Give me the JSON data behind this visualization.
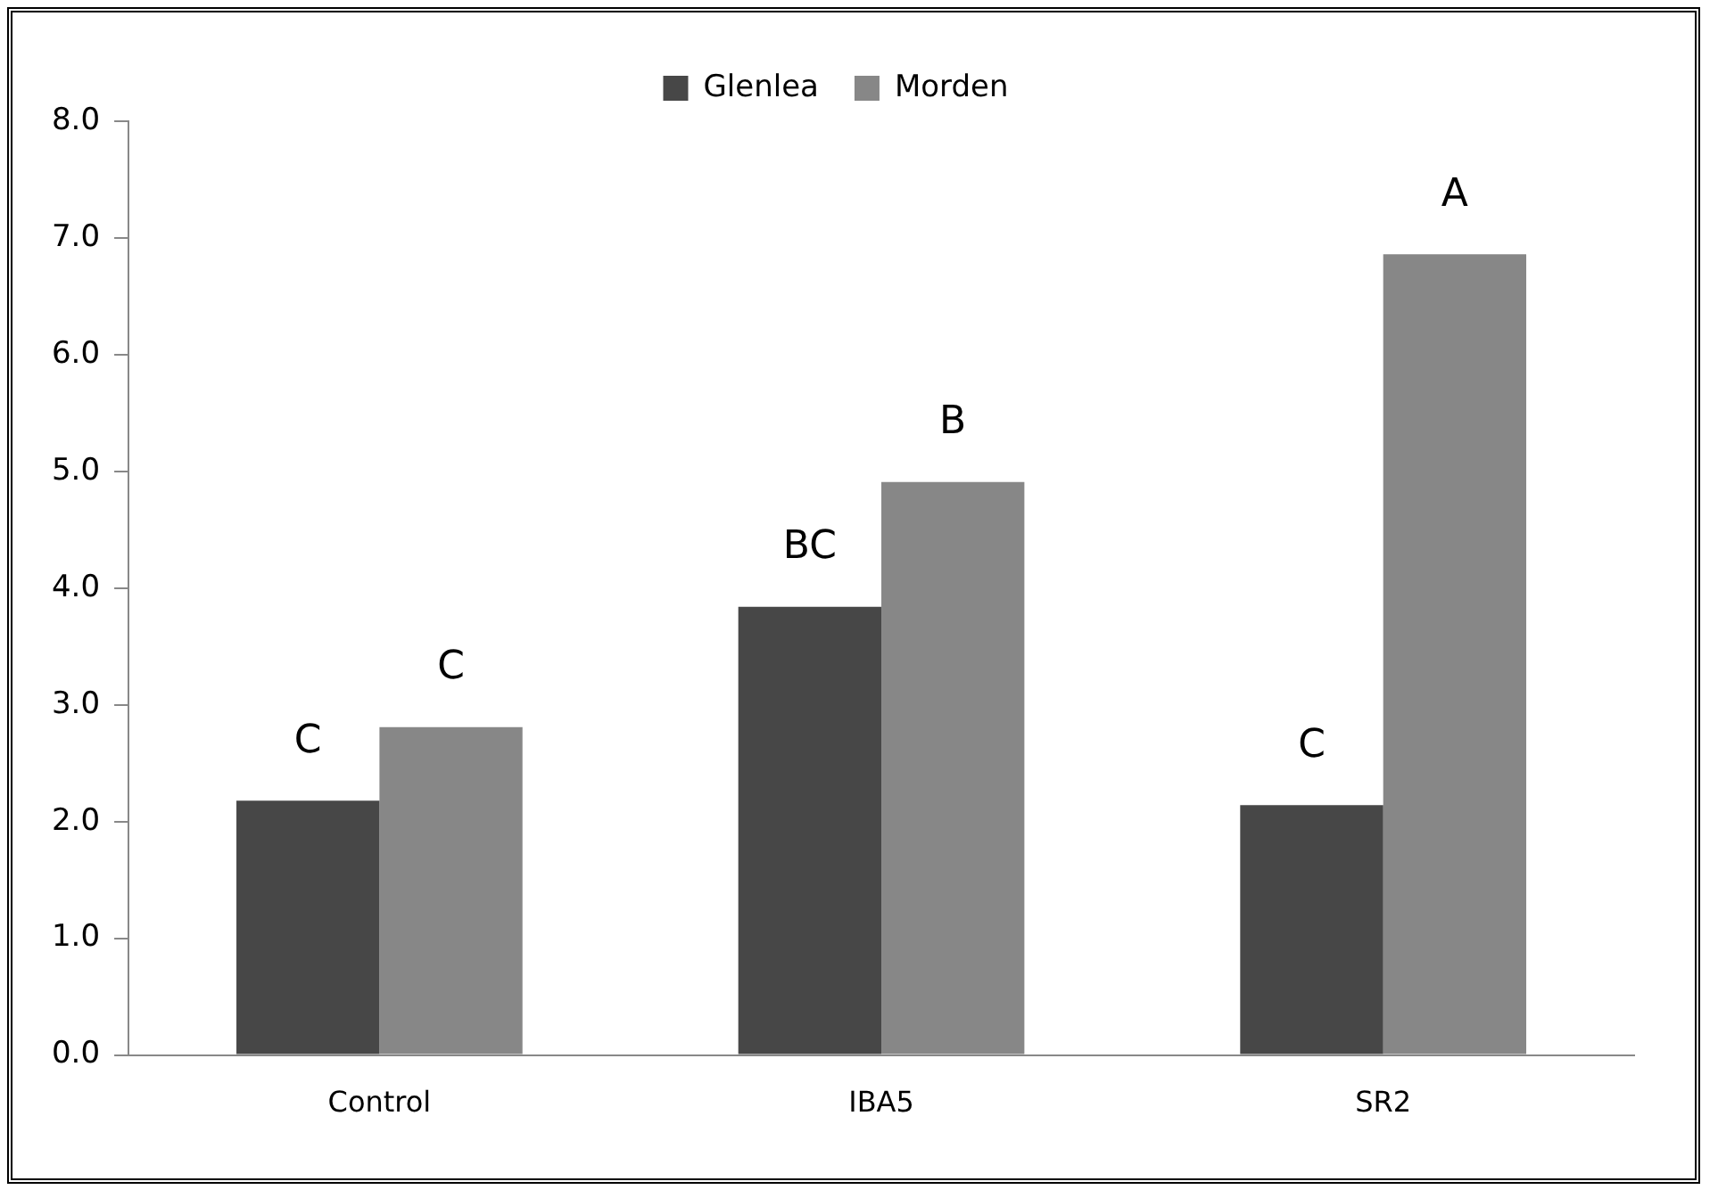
{
  "chart_data": {
    "type": "bar",
    "categories": [
      "Control",
      "IBA5",
      "SR2"
    ],
    "series": [
      {
        "name": "Glenlea",
        "color": "#474747",
        "values": [
          2.18,
          3.84,
          2.14
        ]
      },
      {
        "name": "Morden",
        "color": "#878787",
        "values": [
          2.81,
          4.91,
          6.86
        ]
      }
    ],
    "ylim": [
      0,
      8
    ],
    "yticks": [
      {
        "value": 0,
        "label": "0.0"
      },
      {
        "value": 1,
        "label": "1.0"
      },
      {
        "value": 2,
        "label": "2.0"
      },
      {
        "value": 3,
        "label": "3.0"
      },
      {
        "value": 4,
        "label": "4.0"
      },
      {
        "value": 5,
        "label": "5.0"
      },
      {
        "value": 6,
        "label": "6.0"
      },
      {
        "value": 7,
        "label": "7.0"
      },
      {
        "value": 8,
        "label": "8.0"
      }
    ],
    "annotations": [
      {
        "text": "C",
        "x": "Control",
        "y": 2.18
      },
      {
        "text": "C",
        "x": "Control",
        "y": 2.81
      },
      {
        "text": "BC",
        "x": "IBA5",
        "y": 3.84
      },
      {
        "text": "B",
        "x": "IBA5",
        "y": 4.91
      },
      {
        "text": "C",
        "x": "SR2",
        "y": 2.14
      },
      {
        "text": "A",
        "x": "SR2",
        "y": 6.86
      }
    ],
    "grid": false,
    "legend": "top"
  }
}
